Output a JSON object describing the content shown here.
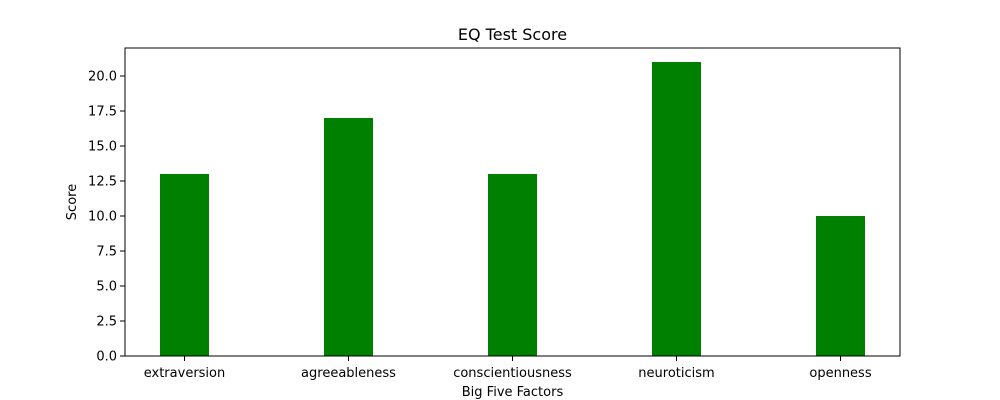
{
  "chart_data": {
    "type": "bar",
    "title": "EQ Test Score",
    "xlabel": "Big Five Factors",
    "ylabel": "Score",
    "categories": [
      "extraversion",
      "agreeableness",
      "conscientiousness",
      "neuroticism",
      "openness"
    ],
    "values": [
      13,
      17,
      13,
      21,
      10
    ],
    "ylim": [
      0,
      22
    ],
    "yticks": [
      "0.0",
      "2.5",
      "5.0",
      "7.5",
      "10.0",
      "12.5",
      "15.0",
      "17.5",
      "20.0"
    ],
    "bar_color": "#008000",
    "grid": false
  }
}
